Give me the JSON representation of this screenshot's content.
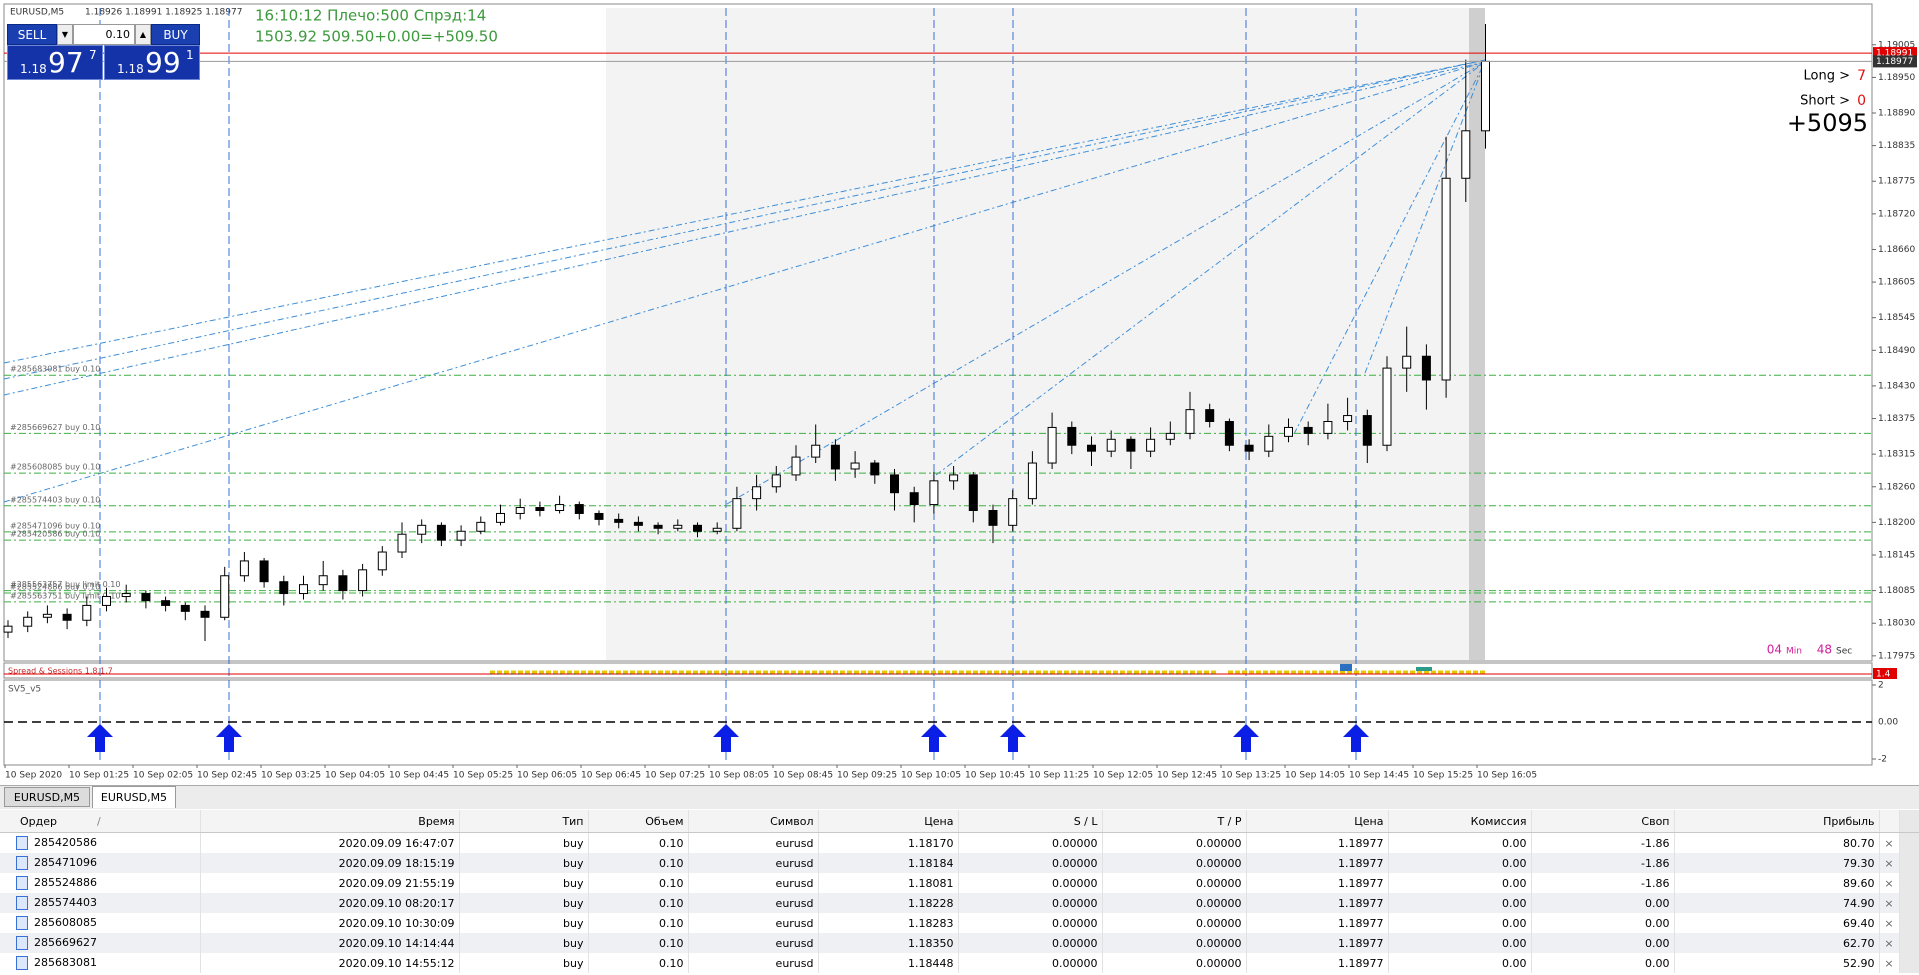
{
  "header": {
    "symbol": "EURUSD,M5",
    "ohlc": "1.18926 1.18991 1.18925 1.18977"
  },
  "trade_panel": {
    "sell_label": "SELL",
    "buy_label": "BUY",
    "lot": "0.10",
    "sell_price": {
      "big": "1.18",
      "main": "97",
      "sup": "7"
    },
    "buy_price": {
      "big": "1.18",
      "main": "99",
      "sup": "1"
    }
  },
  "account_info": {
    "line1": "16:10:12 Плечо:500 Спрэд:14",
    "line2": "1503.92   509.50+0.00=+509.50"
  },
  "positions": {
    "long_label": "Long >",
    "long_count": "7",
    "short_label": "Short >",
    "short_count": "0",
    "total": "+5095"
  },
  "timer": {
    "minutes": "04",
    "min_label": "Min",
    "seconds": "48",
    "sec_label": "Sec"
  },
  "chart": {
    "ylim": [
      1.17968,
      1.19067
    ],
    "yticks": [
      1.19005,
      {
        "value": 1.1895,
        "label": "1.18950"
      },
      {
        "value": 1.1889,
        "label": "1.18890"
      },
      1.18835,
      1.18775,
      {
        "value": 1.1872,
        "label": "1.18720"
      },
      {
        "value": 1.1866,
        "label": "1.18660"
      },
      1.18605,
      1.18545,
      {
        "value": 1.1849,
        "label": "1.18490"
      },
      {
        "value": 1.1843,
        "label": "1.18430"
      },
      1.18375,
      1.18315,
      {
        "value": 1.1826,
        "label": "1.18260"
      },
      {
        "value": 1.182,
        "label": "1.18200"
      },
      1.18145,
      1.18085,
      {
        "value": 1.1803,
        "label": "1.18030"
      },
      1.17975
    ],
    "ask": 1.18991,
    "bid": 1.18977,
    "time_labels": [
      "10 Sep 2020",
      "10 Sep 01:25",
      "10 Sep 02:05",
      "10 Sep 02:45",
      "10 Sep 03:25",
      "10 Sep 04:05",
      "10 Sep 04:45",
      "10 Sep 05:25",
      "10 Sep 06:05",
      "10 Sep 06:45",
      "10 Sep 07:25",
      "10 Sep 08:05",
      "10 Sep 08:45",
      "10 Sep 09:25",
      "10 Sep 10:05",
      "10 Sep 10:45",
      "10 Sep 11:25",
      "10 Sep 12:05",
      "10 Sep 12:45",
      "10 Sep 13:25",
      "10 Sep 14:05",
      "10 Sep 14:45",
      "10 Sep 15:25",
      "10 Sep 16:05"
    ],
    "order_lines": [
      {
        "label": "#285683081 buy 0.10",
        "price": 1.18448
      },
      {
        "label": "#285669627 buy 0.10",
        "price": 1.1835
      },
      {
        "label": "#285608085 buy 0.10",
        "price": 1.18283
      },
      {
        "label": "#285574403 buy 0.10",
        "price": 1.18228
      },
      {
        "label": "#285471096 buy 0.10",
        "price": 1.18184
      },
      {
        "label": "#285420586 buy 0.10",
        "price": 1.1817
      },
      {
        "label": "#285563757 buy limit 0.10",
        "price": 1.18085
      },
      {
        "label": "#285524886 buy 0.10",
        "price": 1.18081
      },
      {
        "label": "#285563751 buy limit 0.10",
        "price": 1.18066
      }
    ],
    "candles": [
      [
        1.18015,
        1.18035,
        1.18005,
        1.18025
      ],
      [
        1.18025,
        1.1805,
        1.18015,
        1.1804
      ],
      [
        1.1804,
        1.1806,
        1.1803,
        1.18045
      ],
      [
        1.18045,
        1.18055,
        1.1802,
        1.18035
      ],
      [
        1.18035,
        1.18075,
        1.18025,
        1.1806
      ],
      [
        1.1806,
        1.1809,
        1.1805,
        1.18075
      ],
      [
        1.18075,
        1.18095,
        1.18065,
        1.1808
      ],
      [
        1.1808,
        1.18085,
        1.18055,
        1.18068
      ],
      [
        1.18068,
        1.18075,
        1.1805,
        1.1806
      ],
      [
        1.1806,
        1.18065,
        1.18035,
        1.1805
      ],
      [
        1.1805,
        1.1806,
        1.18,
        1.1804
      ],
      [
        1.1804,
        1.18125,
        1.18035,
        1.1811
      ],
      [
        1.1811,
        1.1815,
        1.181,
        1.18135
      ],
      [
        1.18135,
        1.1814,
        1.1809,
        1.181
      ],
      [
        1.181,
        1.1811,
        1.1806,
        1.1808
      ],
      [
        1.1808,
        1.1811,
        1.1807,
        1.18095
      ],
      [
        1.18095,
        1.18135,
        1.18085,
        1.1811
      ],
      [
        1.1811,
        1.1812,
        1.1807,
        1.18085
      ],
      [
        1.18085,
        1.1813,
        1.18075,
        1.1812
      ],
      [
        1.1812,
        1.1816,
        1.1811,
        1.1815
      ],
      [
        1.1815,
        1.182,
        1.1814,
        1.1818
      ],
      [
        1.1818,
        1.18205,
        1.18165,
        1.18195
      ],
      [
        1.18195,
        1.182,
        1.1816,
        1.1817
      ],
      [
        1.1817,
        1.18195,
        1.1816,
        1.18185
      ],
      [
        1.18185,
        1.1821,
        1.1818,
        1.182
      ],
      [
        1.182,
        1.1823,
        1.18195,
        1.18215
      ],
      [
        1.18215,
        1.1824,
        1.18205,
        1.18225
      ],
      [
        1.18225,
        1.18235,
        1.1821,
        1.1822
      ],
      [
        1.1822,
        1.18245,
        1.18215,
        1.1823
      ],
      [
        1.1823,
        1.18235,
        1.18205,
        1.18215
      ],
      [
        1.18215,
        1.1822,
        1.18195,
        1.18205
      ],
      [
        1.18205,
        1.18215,
        1.1819,
        1.182
      ],
      [
        1.182,
        1.1821,
        1.18185,
        1.18195
      ],
      [
        1.18195,
        1.182,
        1.1818,
        1.1819
      ],
      [
        1.1819,
        1.18205,
        1.18185,
        1.18195
      ],
      [
        1.18195,
        1.182,
        1.18175,
        1.18185
      ],
      [
        1.18185,
        1.182,
        1.1818,
        1.1819
      ],
      [
        1.1819,
        1.1826,
        1.18185,
        1.1824
      ],
      [
        1.1824,
        1.1828,
        1.1822,
        1.1826
      ],
      [
        1.1826,
        1.18295,
        1.1825,
        1.1828
      ],
      [
        1.1828,
        1.1833,
        1.1827,
        1.1831
      ],
      [
        1.1831,
        1.18365,
        1.183,
        1.1833
      ],
      [
        1.1833,
        1.1834,
        1.1827,
        1.1829
      ],
      [
        1.1829,
        1.1832,
        1.18275,
        1.183
      ],
      [
        1.183,
        1.18305,
        1.18265,
        1.1828
      ],
      [
        1.1828,
        1.1829,
        1.1822,
        1.1825
      ],
      [
        1.1825,
        1.1826,
        1.182,
        1.1823
      ],
      [
        1.1823,
        1.18285,
        1.18215,
        1.1827
      ],
      [
        1.1827,
        1.18295,
        1.18255,
        1.1828
      ],
      [
        1.1828,
        1.18285,
        1.182,
        1.1822
      ],
      [
        1.1822,
        1.1823,
        1.18165,
        1.18195
      ],
      [
        1.18195,
        1.18255,
        1.18185,
        1.1824
      ],
      [
        1.1824,
        1.1832,
        1.1823,
        1.183
      ],
      [
        1.183,
        1.18385,
        1.1829,
        1.1836
      ],
      [
        1.1836,
        1.1837,
        1.18315,
        1.1833
      ],
      [
        1.1833,
        1.18345,
        1.18295,
        1.1832
      ],
      [
        1.1832,
        1.18355,
        1.1831,
        1.1834
      ],
      [
        1.1834,
        1.18345,
        1.1829,
        1.1832
      ],
      [
        1.1832,
        1.1836,
        1.1831,
        1.1834
      ],
      [
        1.1834,
        1.1837,
        1.1833,
        1.1835
      ],
      [
        1.1835,
        1.1842,
        1.1834,
        1.1839
      ],
      [
        1.1839,
        1.184,
        1.1836,
        1.1837
      ],
      [
        1.1837,
        1.18375,
        1.1832,
        1.1833
      ],
      [
        1.1833,
        1.1834,
        1.18305,
        1.1832
      ],
      [
        1.1832,
        1.18365,
        1.1831,
        1.18345
      ],
      [
        1.18345,
        1.18375,
        1.18335,
        1.1836
      ],
      [
        1.1836,
        1.1837,
        1.1833,
        1.1835
      ],
      [
        1.1835,
        1.184,
        1.1834,
        1.1837
      ],
      [
        1.1837,
        1.1841,
        1.18355,
        1.1838
      ],
      [
        1.1838,
        1.1839,
        1.183,
        1.1833
      ],
      [
        1.1833,
        1.1848,
        1.1832,
        1.1846
      ],
      [
        1.1846,
        1.1853,
        1.1842,
        1.1848
      ],
      [
        1.1848,
        1.185,
        1.1839,
        1.1844
      ],
      [
        1.1844,
        1.1885,
        1.1841,
        1.1878
      ],
      [
        1.1878,
        1.1898,
        1.1874,
        1.1886
      ],
      [
        1.1886,
        1.1904,
        1.1883,
        1.18977
      ]
    ]
  },
  "indicators": {
    "spread_name": "Spread & Sessions 1.8.1.7",
    "spread_value": 1.4,
    "sv5_name": "SV5_v5",
    "sv5_ylim": [
      -2.27,
      2.27
    ],
    "sv5_ticks": [
      2,
      {
        "value": 0,
        "label": "0.00"
      },
      -2
    ]
  },
  "tabs": [
    "EURUSD,M5",
    "EURUSD,M5"
  ],
  "table": {
    "sort_marker": "/",
    "headers": [
      "Ордер",
      "Время",
      "Тип",
      "Объем",
      "Символ",
      "Цена",
      "S / L",
      "T / P",
      "Цена",
      "Комиссия",
      "Своп",
      "Прибыль"
    ],
    "rows": [
      [
        "285420586",
        "2020.09.09 16:47:07",
        "buy",
        "0.10",
        "eurusd",
        "1.18170",
        "0.00000",
        "0.00000",
        "1.18977",
        "0.00",
        "-1.86",
        "80.70"
      ],
      [
        "285471096",
        "2020.09.09 18:15:19",
        "buy",
        "0.10",
        "eurusd",
        "1.18184",
        "0.00000",
        "0.00000",
        "1.18977",
        "0.00",
        "-1.86",
        "79.30"
      ],
      [
        "285524886",
        "2020.09.09 21:55:19",
        "buy",
        "0.10",
        "eurusd",
        "1.18081",
        "0.00000",
        "0.00000",
        "1.18977",
        "0.00",
        "-1.86",
        "89.60"
      ],
      [
        "285574403",
        "2020.09.10 08:20:17",
        "buy",
        "0.10",
        "eurusd",
        "1.18228",
        "0.00000",
        "0.00000",
        "1.18977",
        "0.00",
        "0.00",
        "74.90"
      ],
      [
        "285608085",
        "2020.09.10 10:30:09",
        "buy",
        "0.10",
        "eurusd",
        "1.18283",
        "0.00000",
        "0.00000",
        "1.18977",
        "0.00",
        "0.00",
        "69.40"
      ],
      [
        "285669627",
        "2020.09.10 14:14:44",
        "buy",
        "0.10",
        "eurusd",
        "1.18350",
        "0.00000",
        "0.00000",
        "1.18977",
        "0.00",
        "0.00",
        "62.70"
      ],
      [
        "285683081",
        "2020.09.10 14:55:12",
        "buy",
        "0.10",
        "eurusd",
        "1.18448",
        "0.00000",
        "0.00000",
        "1.18977",
        "0.00",
        "0.00",
        "52.90"
      ]
    ]
  }
}
